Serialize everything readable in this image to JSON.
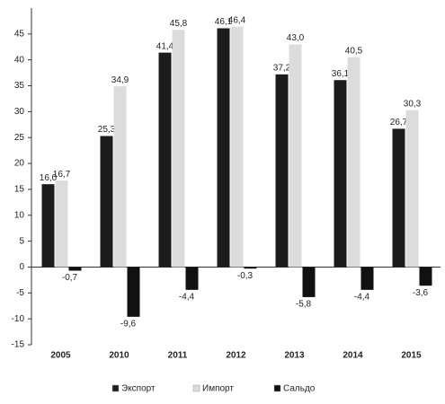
{
  "chart_data": {
    "type": "bar",
    "categories": [
      "2005",
      "2010",
      "2011",
      "2012",
      "2013",
      "2014",
      "2015"
    ],
    "series": [
      {
        "name": "Экспорт",
        "color": "#1c1c1c",
        "values": [
          16.0,
          25.3,
          41.4,
          46.1,
          37.2,
          36.1,
          26.7
        ],
        "value_labels": [
          "16,0",
          "25,3",
          "41,4",
          "46,1",
          "37,2",
          "36,1",
          "26,7"
        ]
      },
      {
        "name": "Импорт",
        "color": "#dcdcdc",
        "values": [
          16.7,
          34.9,
          45.8,
          46.4,
          43.0,
          40.5,
          30.3
        ],
        "value_labels": [
          "16,7",
          "34,9",
          "45,8",
          "46,4",
          "43,0",
          "40,5",
          "30,3"
        ]
      },
      {
        "name": "Сальдо",
        "color": "#111111",
        "values": [
          -0.7,
          -9.6,
          -4.4,
          -0.3,
          -5.8,
          -4.4,
          -3.6
        ],
        "value_labels": [
          "-0,7",
          "-9,6",
          "-4,4",
          "-0,3",
          "-5,8",
          "-4,4",
          "-3,6"
        ]
      }
    ],
    "ylim": [
      -15,
      50
    ],
    "yticks": [
      -15,
      -10,
      -5,
      0,
      5,
      10,
      15,
      20,
      25,
      30,
      35,
      40,
      45
    ],
    "legend": "bottom"
  }
}
